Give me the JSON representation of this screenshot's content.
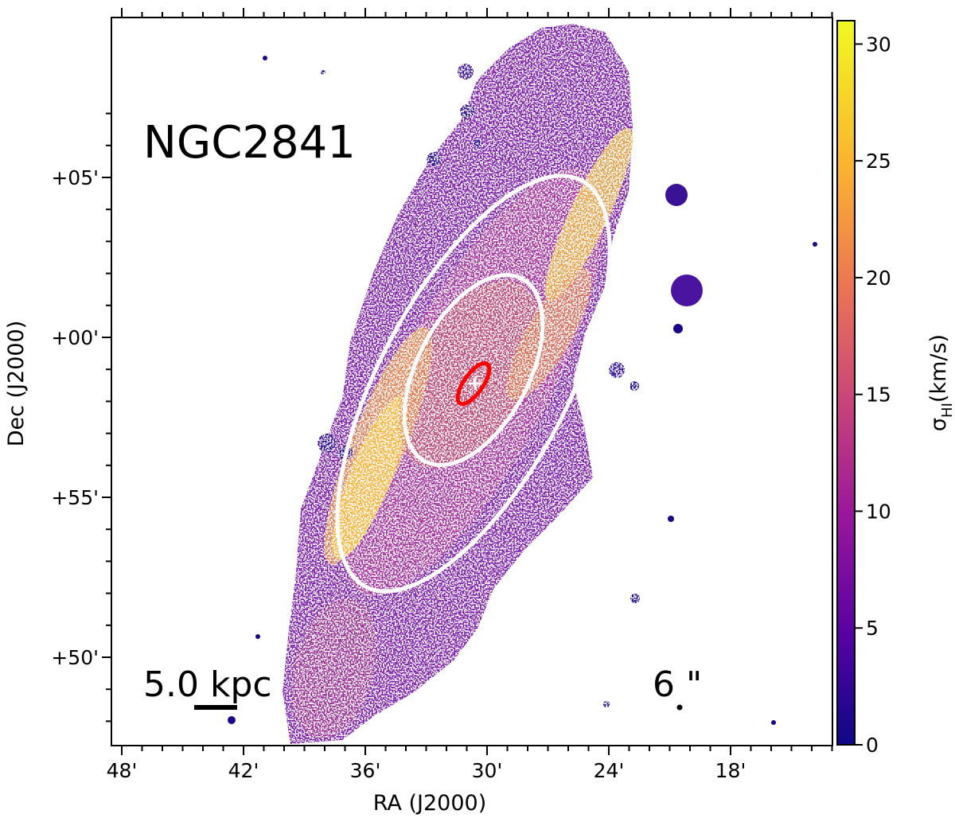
{
  "chart_data": {
    "type": "heatmap",
    "object_name": "NGC2841",
    "xlabel": "RA (J2000)",
    "ylabel": "Dec (J2000)",
    "x_ticks": [
      "48'",
      "42'",
      "36'",
      "30'",
      "24'",
      "18'"
    ],
    "y_ticks": [
      "+05'",
      "+00'",
      "+55'",
      "+50'"
    ],
    "colorbar": {
      "label_main": "σ",
      "label_sub": "HI",
      "label_unit": "(km/s)",
      "range": [
        0,
        31
      ],
      "ticks": [
        "0",
        "5",
        "10",
        "15",
        "20",
        "25",
        "30"
      ],
      "tick_values": [
        0,
        5,
        10,
        15,
        20,
        25,
        30
      ],
      "colors": [
        "#0d0887",
        "#5b02a3",
        "#9a179b",
        "#cb4678",
        "#eb7852",
        "#fbb32f",
        "#f0f921"
      ]
    },
    "scale_bar_label": "5.0 kpc",
    "beam_label": "6 \"",
    "ellipse_colors": {
      "outer": "#ffffff",
      "inner": "#ffffff",
      "core": "#ff0000"
    }
  }
}
